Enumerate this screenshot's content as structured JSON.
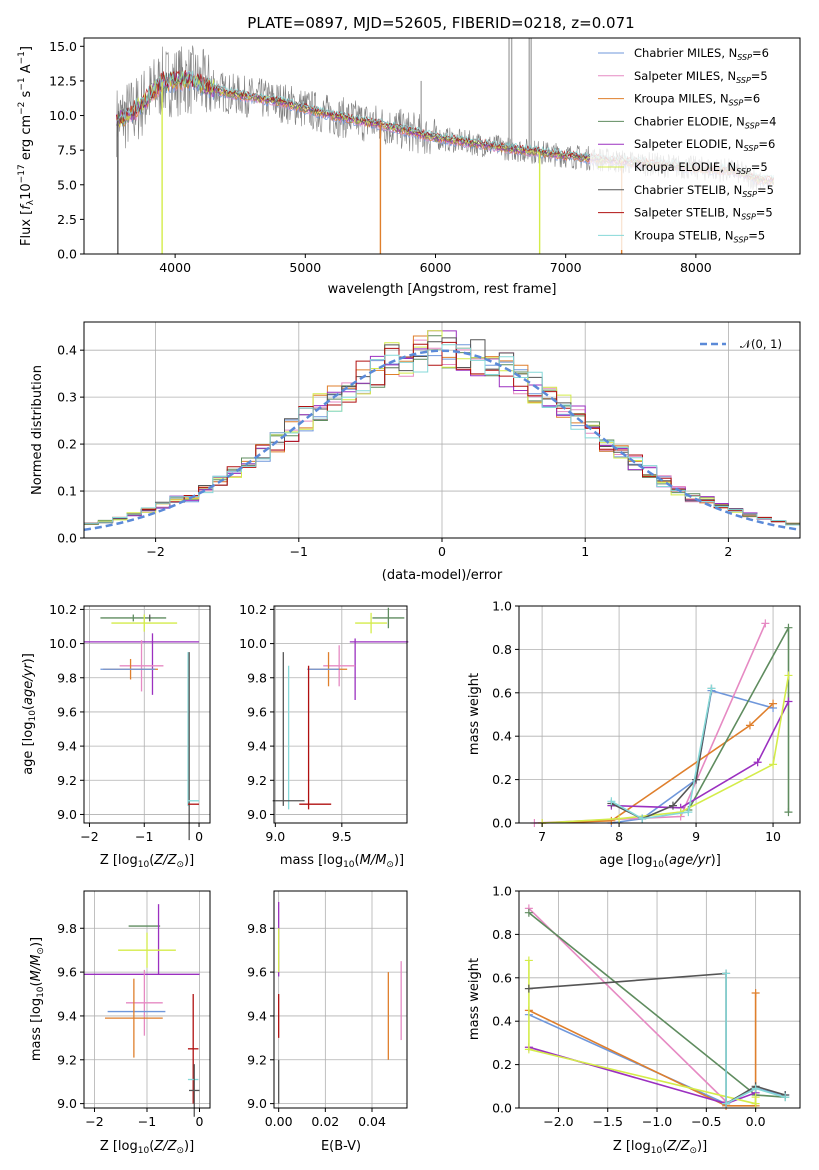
{
  "figure": {
    "title": "PLATE=0897, MJD=52605, FIBERID=0218, z=0.071"
  },
  "colors": {
    "chabrier_miles": "#6f97db",
    "salpeter_miles": "#e68ac3",
    "kroupa_miles": "#df7f2c",
    "chabrier_elodie": "#5f8c5f",
    "salpeter_elodie": "#9b30c0",
    "kroupa_elodie": "#d4ec4a",
    "chabrier_stelib": "#555555",
    "salpeter_stelib": "#b01010",
    "kroupa_stelib": "#86d8d8",
    "data": "#7f7f7f",
    "gaussian": "#5b8ad8"
  },
  "chart_data": [
    {
      "id": "spectrum",
      "type": "line",
      "title": "PLATE=0897, MJD=52605, FIBERID=0218, z=0.071",
      "xlabel": "wavelength [Angstrom, rest frame]",
      "ylabel": "Flux [f_λ 10^-17 erg cm^-2 s^-1 A^-1]",
      "xlim": [
        3300,
        8800
      ],
      "ylim": [
        0,
        15.6
      ],
      "xticks": [
        "4000",
        "5000",
        "6000",
        "7000",
        "8000"
      ],
      "yticks": [
        "0.0",
        "2.5",
        "5.0",
        "7.5",
        "10.0",
        "12.5",
        "15.0"
      ],
      "legend_position": "top-right",
      "legend": [
        {
          "name": "Chabrier MILES, N_SSP=6",
          "base": "Chabrier MILES, N",
          "sub": "SSP",
          "tail": "=6",
          "color": "#6f97db"
        },
        {
          "name": "Salpeter MILES, N_SSP=5",
          "base": "Salpeter MILES, N",
          "sub": "SSP",
          "tail": "=5",
          "color": "#e68ac3"
        },
        {
          "name": "Kroupa MILES, N_SSP=6",
          "base": "Kroupa MILES, N",
          "sub": "SSP",
          "tail": "=6",
          "color": "#df7f2c"
        },
        {
          "name": "Chabrier ELODIE, N_SSP=4",
          "base": "Chabrier ELODIE, N",
          "sub": "SSP",
          "tail": "=4",
          "color": "#5f8c5f"
        },
        {
          "name": "Salpeter ELODIE, N_SSP=6",
          "base": "Salpeter ELODIE, N",
          "sub": "SSP",
          "tail": "=6",
          "color": "#9b30c0"
        },
        {
          "name": "Kroupa ELODIE, N_SSP=5",
          "base": "Kroupa ELODIE, N",
          "sub": "SSP",
          "tail": "=5",
          "color": "#d4ec4a"
        },
        {
          "name": "Chabrier STELIB, N_SSP=5",
          "base": "Chabrier STELIB, N",
          "sub": "SSP",
          "tail": "=5",
          "color": "#555555"
        },
        {
          "name": "Salpeter STELIB, N_SSP=5",
          "base": "Salpeter STELIB, N",
          "sub": "SSP",
          "tail": "=5",
          "color": "#b01010"
        },
        {
          "name": "Kroupa STELIB, N_SSP=5",
          "base": "Kroupa STELIB, N",
          "sub": "SSP",
          "tail": "=5",
          "color": "#86d8d8"
        }
      ],
      "continuum": [
        [
          3550,
          9.6
        ],
        [
          3700,
          10.4
        ],
        [
          3900,
          12.4
        ],
        [
          4100,
          12.6
        ],
        [
          4400,
          11.6
        ],
        [
          4800,
          11.0
        ],
        [
          5200,
          10.0
        ],
        [
          5600,
          9.3
        ],
        [
          6000,
          8.4
        ],
        [
          6500,
          7.7
        ],
        [
          7000,
          7.1
        ],
        [
          7500,
          6.6
        ],
        [
          8000,
          6.2
        ],
        [
          8300,
          6.0
        ],
        [
          8500,
          5.3
        ]
      ],
      "dropouts": [
        {
          "x": 3560,
          "color": "#555555"
        },
        {
          "x": 3900,
          "color": "#d4ec4a"
        },
        {
          "x": 5577,
          "color": "#df7f2c"
        },
        {
          "x": 6800,
          "color": "#d4ec4a"
        },
        {
          "x": 7430,
          "color": "#df7f2c"
        }
      ],
      "spikes": [
        [
          6565,
          15.6
        ],
        [
          6585,
          15.6
        ],
        [
          6720,
          15.6
        ],
        [
          6735,
          15.6
        ],
        [
          5890,
          12.5
        ]
      ]
    },
    {
      "id": "residuals",
      "type": "histogram",
      "xlabel": "(data-model)/error",
      "ylabel": "Normed distribution",
      "xlim": [
        -2.5,
        2.5
      ],
      "ylim": [
        0,
        0.46
      ],
      "xticks": [
        "−2",
        "−1",
        "0",
        "1",
        "2"
      ],
      "yticks": [
        "0.0",
        "0.1",
        "0.2",
        "0.3",
        "0.4"
      ],
      "legend_position": "top-right",
      "legend": [
        {
          "name": "𝒩(0, 1)",
          "style": "dashed",
          "color": "#5b8ad8"
        }
      ],
      "gaussian": {
        "mean": 0,
        "sigma": 1
      },
      "bin_width": 0.1
    },
    {
      "id": "age_vs_Z",
      "type": "errorbar",
      "xlabel": "Z [log10(Z/Z⊙)]",
      "ylabel": "age  [log10(age/yr)]",
      "xlim": [
        -2.1,
        0.2
      ],
      "ylim": [
        8.95,
        10.22
      ],
      "xticks": [
        "−2",
        "−1",
        "0"
      ],
      "xtick_values": [
        -2,
        -1,
        0
      ],
      "yticks": [
        "9.0",
        "9.2",
        "9.4",
        "9.6",
        "9.8",
        "10.0",
        "10.2"
      ],
      "ytick_values": [
        9.0,
        9.2,
        9.4,
        9.6,
        9.8,
        10.0,
        10.2
      ],
      "points": [
        {
          "x": -1.2,
          "xerr": 0.6,
          "y": 10.15,
          "yerr": 0.02,
          "color": "#5f8c5f"
        },
        {
          "x": -1.0,
          "xerr": 0.6,
          "y": 10.12,
          "yerr": 0.05,
          "color": "#d4ec4a"
        },
        {
          "x": -0.9,
          "xerr": 0.0,
          "y": 10.15,
          "yerr": 0.02,
          "color": "#555555"
        },
        {
          "x": -1.05,
          "xerr": 1.05,
          "y": 10.01,
          "yerr": 0.0,
          "color": "#9b30c0"
        },
        {
          "x": -0.85,
          "xerr": 0.0,
          "y": 9.88,
          "yerr": 0.18,
          "color": "#9b30c0"
        },
        {
          "x": -1.05,
          "xerr": 0.4,
          "y": 9.87,
          "yerr": 0.15,
          "color": "#e68ac3"
        },
        {
          "x": -1.25,
          "xerr": 0.5,
          "y": 9.85,
          "yerr": 0.06,
          "color": "#df7f2c"
        },
        {
          "x": -1.3,
          "xerr": 0.5,
          "y": 9.85,
          "yerr": 0.0,
          "color": "#6f97db"
        },
        {
          "x": -0.2,
          "xerr": 0.0,
          "y": 9.5,
          "yerr": 0.45,
          "color": "#86d8d8"
        },
        {
          "x": -0.18,
          "xerr": 0.0,
          "y": 9.4,
          "yerr": 0.55,
          "color": "#555555"
        },
        {
          "x": -0.1,
          "xerr": 0.1,
          "y": 9.08,
          "yerr": 0.0,
          "color": "#86d8d8"
        },
        {
          "x": -0.1,
          "xerr": 0.1,
          "y": 9.06,
          "yerr": 0.0,
          "color": "#b01010"
        }
      ]
    },
    {
      "id": "age_vs_mass",
      "type": "errorbar",
      "xlabel": "mass [log10(M/M⊙)]",
      "ylabel": "",
      "xlim": [
        8.99,
        9.99
      ],
      "ylim": [
        8.95,
        10.22
      ],
      "xticks": [
        "9.0",
        "9.5"
      ],
      "xtick_values": [
        9.0,
        9.5
      ],
      "yticks": [
        "9.0",
        "9.2",
        "9.4",
        "9.6",
        "9.8",
        "10.0",
        "10.2"
      ],
      "ytick_values": [
        9.0,
        9.2,
        9.4,
        9.6,
        9.8,
        10.0,
        10.2
      ],
      "points": [
        {
          "x": 9.85,
          "xerr": 0.12,
          "y": 10.15,
          "yerr": 0.06,
          "color": "#5f8c5f"
        },
        {
          "x": 9.72,
          "xerr": 0.12,
          "y": 10.12,
          "yerr": 0.06,
          "color": "#d4ec4a"
        },
        {
          "x": 9.78,
          "xerr": 0.22,
          "y": 10.01,
          "yerr": 0.0,
          "color": "#9b30c0"
        },
        {
          "x": 9.6,
          "xerr": 0.0,
          "y": 9.85,
          "yerr": 0.18,
          "color": "#9b30c0"
        },
        {
          "x": 9.48,
          "xerr": 0.12,
          "y": 9.87,
          "yerr": 0.12,
          "color": "#e68ac3"
        },
        {
          "x": 9.4,
          "xerr": 0.14,
          "y": 9.85,
          "yerr": 0.1,
          "color": "#df7f2c"
        },
        {
          "x": 9.36,
          "xerr": 0.12,
          "y": 9.85,
          "yerr": 0.0,
          "color": "#6f97db"
        },
        {
          "x": 9.1,
          "xerr": 0.0,
          "y": 9.45,
          "yerr": 0.42,
          "color": "#86d8d8"
        },
        {
          "x": 9.06,
          "xerr": 0.0,
          "y": 9.5,
          "yerr": 0.45,
          "color": "#555555"
        },
        {
          "x": 9.25,
          "xerr": 0.0,
          "y": 9.45,
          "yerr": 0.42,
          "color": "#b01010"
        },
        {
          "x": 9.1,
          "xerr": 0.12,
          "y": 9.08,
          "yerr": 0.0,
          "color": "#555555"
        },
        {
          "x": 9.3,
          "xerr": 0.12,
          "y": 9.06,
          "yerr": 0.0,
          "color": "#b01010"
        }
      ]
    },
    {
      "id": "massweight_vs_age",
      "type": "line",
      "xlabel": "age  [log10(age/yr)]",
      "ylabel": "mass weight",
      "xlim": [
        6.7,
        10.35
      ],
      "ylim": [
        0,
        1.0
      ],
      "xticks": [
        "7",
        "8",
        "9",
        "10"
      ],
      "xtick_values": [
        7,
        8,
        9,
        10
      ],
      "yticks": [
        "0.0",
        "0.2",
        "0.4",
        "0.6",
        "0.8",
        "1.0"
      ],
      "ytick_values": [
        0,
        0.2,
        0.4,
        0.6,
        0.8,
        1.0
      ],
      "series": [
        {
          "color": "#6f97db",
          "x": [
            7.9,
            8.3,
            9.0,
            9.2,
            10.0
          ],
          "y": [
            0.0,
            0.02,
            0.2,
            0.61,
            0.53
          ]
        },
        {
          "color": "#e68ac3",
          "x": [
            6.9,
            8.8,
            9.9
          ],
          "y": [
            0.0,
            0.03,
            0.92
          ]
        },
        {
          "color": "#df7f2c",
          "x": [
            7.0,
            7.9,
            9.7,
            10.0
          ],
          "y": [
            0.0,
            0.01,
            0.45,
            0.55
          ]
        },
        {
          "color": "#5f8c5f",
          "x": [
            8.9,
            10.2,
            10.2
          ],
          "y": [
            0.06,
            0.9,
            0.05
          ]
        },
        {
          "color": "#9b30c0",
          "x": [
            7.9,
            8.8,
            9.8,
            10.2
          ],
          "y": [
            0.08,
            0.07,
            0.28,
            0.56
          ]
        },
        {
          "color": "#d4ec4a",
          "x": [
            7.0,
            8.0,
            8.8,
            10.0,
            10.2
          ],
          "y": [
            0.0,
            0.02,
            0.05,
            0.27,
            0.68
          ]
        },
        {
          "color": "#555555",
          "x": [
            7.9,
            8.3,
            8.7,
            9.0,
            9.2
          ],
          "y": [
            0.09,
            0.02,
            0.08,
            0.2,
            0.62
          ]
        },
        {
          "color": "#86d8d8",
          "x": [
            7.9,
            8.3,
            8.9,
            9.2
          ],
          "y": [
            0.1,
            0.02,
            0.05,
            0.62
          ]
        }
      ]
    },
    {
      "id": "mass_vs_Z",
      "type": "errorbar",
      "xlabel": "Z [log10(Z/Z⊙)]",
      "ylabel": "mass [log10(M/M⊙)]",
      "xlim": [
        -2.2,
        0.2
      ],
      "ylim": [
        8.98,
        9.97
      ],
      "xticks": [
        "−2",
        "−1",
        "0"
      ],
      "xtick_values": [
        -2,
        -1,
        0
      ],
      "yticks": [
        "9.0",
        "9.2",
        "9.4",
        "9.6",
        "9.8"
      ],
      "ytick_values": [
        9.0,
        9.2,
        9.4,
        9.6,
        9.8
      ],
      "points": [
        {
          "x": -1.05,
          "xerr": 0.3,
          "y": 9.81,
          "yerr": 0.0,
          "color": "#5f8c5f"
        },
        {
          "x": -0.78,
          "xerr": 0.0,
          "y": 9.75,
          "yerr": 0.16,
          "color": "#9b30c0"
        },
        {
          "x": -1.0,
          "xerr": 0.55,
          "y": 9.7,
          "yerr": 0.08,
          "color": "#d4ec4a"
        },
        {
          "x": -1.1,
          "xerr": 1.1,
          "y": 9.59,
          "yerr": 0.0,
          "color": "#9b30c0"
        },
        {
          "x": -1.05,
          "xerr": 0.35,
          "y": 9.46,
          "yerr": 0.15,
          "color": "#e68ac3"
        },
        {
          "x": -1.2,
          "xerr": 0.55,
          "y": 9.42,
          "yerr": 0.0,
          "color": "#6f97db"
        },
        {
          "x": -1.25,
          "xerr": 0.55,
          "y": 9.39,
          "yerr": 0.18,
          "color": "#df7f2c"
        },
        {
          "x": -0.12,
          "xerr": 0.1,
          "y": 9.25,
          "yerr": 0.25,
          "color": "#b01010"
        },
        {
          "x": -0.12,
          "xerr": 0.1,
          "y": 9.11,
          "yerr": 0.0,
          "color": "#86d8d8"
        },
        {
          "x": -0.1,
          "xerr": 0.1,
          "y": 9.06,
          "yerr": 0.12,
          "color": "#555555"
        }
      ]
    },
    {
      "id": "mass_vs_EBV",
      "type": "errorbar",
      "xlabel": "E(B-V)",
      "ylabel": "",
      "xlim": [
        -0.002,
        0.055
      ],
      "ylim": [
        8.98,
        9.97
      ],
      "xticks": [
        "0.00",
        "0.02",
        "0.04"
      ],
      "xtick_values": [
        0.0,
        0.02,
        0.04
      ],
      "yticks": [
        "9.0",
        "9.2",
        "9.4",
        "9.6",
        "9.8"
      ],
      "ytick_values": [
        9.0,
        9.2,
        9.4,
        9.6,
        9.8
      ],
      "points": [
        {
          "x": 0.0,
          "xerr": 0.0,
          "y": 9.75,
          "yerr": 0.17,
          "color": "#9b30c0"
        },
        {
          "x": 0.0,
          "xerr": 0.0,
          "y": 9.7,
          "yerr": 0.1,
          "color": "#d4ec4a"
        },
        {
          "x": 0.0,
          "xerr": 0.0,
          "y": 9.4,
          "yerr": 0.1,
          "color": "#b01010"
        },
        {
          "x": 0.0,
          "xerr": 0.0,
          "y": 9.1,
          "yerr": 0.1,
          "color": "#555555"
        },
        {
          "x": 0.047,
          "xerr": 0.0,
          "y": 9.4,
          "yerr": 0.2,
          "color": "#df7f2c"
        },
        {
          "x": 0.0525,
          "xerr": 0.0,
          "y": 9.47,
          "yerr": 0.18,
          "color": "#e68ac3"
        }
      ]
    },
    {
      "id": "massweight_vs_Z",
      "type": "line",
      "xlabel": "Z [log10(Z/Z⊙)]",
      "ylabel": "mass weight",
      "xlim": [
        -2.4,
        0.45
      ],
      "ylim": [
        0,
        1.0
      ],
      "xticks": [
        "−2.0",
        "−1.5",
        "−1.0",
        "−0.5",
        "0.0"
      ],
      "xtick_values": [
        -2.0,
        -1.5,
        -1.0,
        -0.5,
        0.0
      ],
      "yticks": [
        "0.0",
        "0.2",
        "0.4",
        "0.6",
        "0.8",
        "1.0"
      ],
      "ytick_values": [
        0,
        0.2,
        0.4,
        0.6,
        0.8,
        1.0
      ],
      "series": [
        {
          "color": "#6f97db",
          "x": [
            -2.3,
            -0.3,
            0.0,
            0.3
          ],
          "y": [
            0.43,
            0.02,
            0.09,
            0.06
          ]
        },
        {
          "color": "#e68ac3",
          "x": [
            -2.3,
            -0.3
          ],
          "y": [
            0.92,
            0.03
          ]
        },
        {
          "color": "#df7f2c",
          "x": [
            -2.3,
            -0.3,
            0.0,
            0.0
          ],
          "y": [
            0.45,
            0.01,
            0.01,
            0.53
          ]
        },
        {
          "color": "#5f8c5f",
          "x": [
            -2.3,
            0.0,
            0.3
          ],
          "y": [
            0.9,
            0.06,
            0.05
          ]
        },
        {
          "color": "#9b30c0",
          "x": [
            -2.3,
            -0.3,
            0.0
          ],
          "y": [
            0.28,
            0.02,
            0.07
          ]
        },
        {
          "color": "#d4ec4a",
          "x": [
            -2.3,
            -2.3,
            0.0,
            0.0
          ],
          "y": [
            0.68,
            0.27,
            0.02,
            0.05
          ]
        },
        {
          "color": "#555555",
          "x": [
            -2.3,
            -0.3,
            -0.3,
            0.0,
            0.3
          ],
          "y": [
            0.55,
            0.62,
            0.02,
            0.1,
            0.06
          ]
        },
        {
          "color": "#86d8d8",
          "x": [
            -0.3,
            -0.3,
            0.0,
            0.3
          ],
          "y": [
            0.62,
            0.02,
            0.09,
            0.05
          ]
        }
      ]
    }
  ]
}
